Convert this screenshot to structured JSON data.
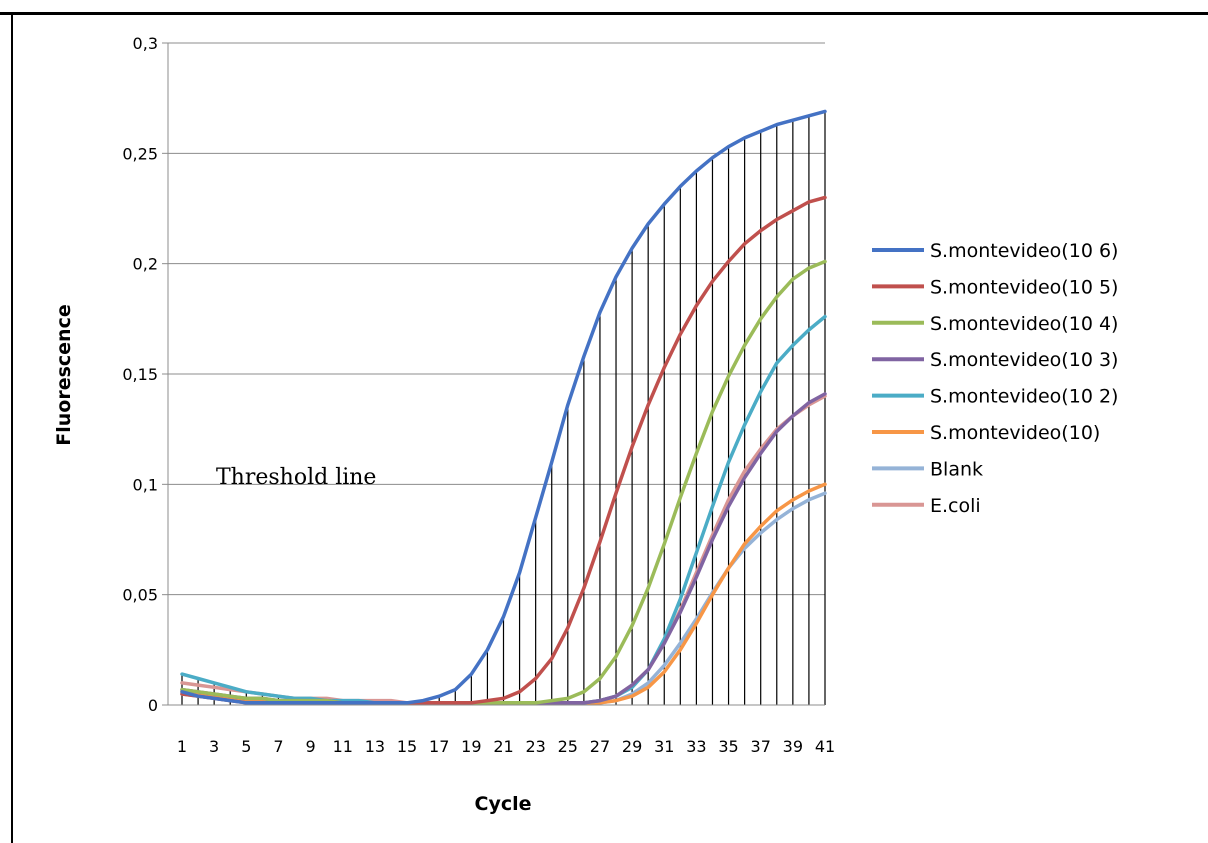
{
  "chart_data": {
    "type": "line",
    "title": "",
    "xlabel": "Cycle",
    "ylabel": "Fluorescence",
    "annotation": "Threshold line",
    "xlim": [
      1,
      41
    ],
    "ylim": [
      0,
      0.3
    ],
    "yticks": [
      "0",
      "0,05",
      "0,1",
      "0,15",
      "0,2",
      "0,25",
      "0,3"
    ],
    "ytick_values": [
      0,
      0.05,
      0.1,
      0.15,
      0.2,
      0.25,
      0.3
    ],
    "xticks": [
      "1",
      "3",
      "5",
      "7",
      "9",
      "11",
      "13",
      "15",
      "17",
      "19",
      "21",
      "23",
      "25",
      "27",
      "29",
      "31",
      "33",
      "35",
      "37",
      "39",
      "41"
    ],
    "grid": true,
    "drop_lines": true,
    "legend_position": "right",
    "x": [
      1,
      2,
      3,
      4,
      5,
      6,
      7,
      8,
      9,
      10,
      11,
      12,
      13,
      14,
      15,
      16,
      17,
      18,
      19,
      20,
      21,
      22,
      23,
      24,
      25,
      26,
      27,
      28,
      29,
      30,
      31,
      32,
      33,
      34,
      35,
      36,
      37,
      38,
      39,
      40,
      41
    ],
    "series": [
      {
        "name": "S.montevideo(10 6)",
        "color": "#4472C4",
        "values": [
          0.006,
          0.004,
          0.003,
          0.002,
          0.001,
          0.001,
          0.001,
          0.001,
          0.001,
          0.001,
          0.001,
          0.001,
          0.001,
          0.001,
          0.001,
          0.002,
          0.004,
          0.007,
          0.014,
          0.025,
          0.04,
          0.06,
          0.085,
          0.11,
          0.136,
          0.158,
          0.178,
          0.194,
          0.207,
          0.218,
          0.227,
          0.235,
          0.242,
          0.248,
          0.253,
          0.257,
          0.26,
          0.263,
          0.265,
          0.267,
          0.269
        ]
      },
      {
        "name": "S.montevideo(10 5)",
        "color": "#C0504D",
        "values": [
          0.005,
          0.004,
          0.003,
          0.002,
          0.001,
          0.001,
          0.001,
          0.001,
          0.001,
          0.001,
          0.001,
          0.001,
          0.001,
          0.001,
          0.001,
          0.001,
          0.001,
          0.001,
          0.001,
          0.002,
          0.003,
          0.006,
          0.012,
          0.021,
          0.035,
          0.053,
          0.074,
          0.096,
          0.117,
          0.136,
          0.153,
          0.168,
          0.181,
          0.192,
          0.201,
          0.209,
          0.215,
          0.22,
          0.224,
          0.228,
          0.23
        ]
      },
      {
        "name": "S.montevideo(10 4)",
        "color": "#9BBB59",
        "values": [
          0.007,
          0.006,
          0.005,
          0.004,
          0.003,
          0.003,
          0.002,
          0.002,
          0.002,
          0.002,
          0.001,
          0.001,
          0.001,
          0.001,
          0.001,
          0.001,
          0.001,
          0.001,
          0.001,
          0.001,
          0.001,
          0.001,
          0.001,
          0.002,
          0.003,
          0.006,
          0.012,
          0.022,
          0.036,
          0.053,
          0.073,
          0.094,
          0.114,
          0.133,
          0.149,
          0.163,
          0.175,
          0.185,
          0.193,
          0.198,
          0.201
        ]
      },
      {
        "name": "S.montevideo(10 3)",
        "color": "#8064A2",
        "values": [
          0.007,
          0.006,
          0.005,
          0.004,
          0.003,
          0.003,
          0.002,
          0.002,
          0.002,
          0.002,
          0.001,
          0.001,
          0.001,
          0.001,
          0.001,
          0.001,
          0.001,
          0.001,
          0.001,
          0.001,
          0.001,
          0.001,
          0.001,
          0.001,
          0.001,
          0.001,
          0.002,
          0.004,
          0.009,
          0.016,
          0.028,
          0.042,
          0.058,
          0.075,
          0.09,
          0.103,
          0.114,
          0.124,
          0.131,
          0.137,
          0.141
        ]
      },
      {
        "name": "S.montevideo(10 2)",
        "color": "#4BACC6",
        "values": [
          0.014,
          0.012,
          0.01,
          0.008,
          0.006,
          0.005,
          0.004,
          0.003,
          0.003,
          0.002,
          0.002,
          0.002,
          0.001,
          0.001,
          0.001,
          0.001,
          0.001,
          0.001,
          0.001,
          0.001,
          0.001,
          0.001,
          0.001,
          0.001,
          0.001,
          0.001,
          0.002,
          0.004,
          0.008,
          0.016,
          0.03,
          0.048,
          0.069,
          0.09,
          0.11,
          0.127,
          0.142,
          0.155,
          0.163,
          0.17,
          0.176
        ]
      },
      {
        "name": "S.montevideo(10)",
        "color": "#F79646",
        "values": [
          0.006,
          0.005,
          0.004,
          0.003,
          0.002,
          0.002,
          0.002,
          0.001,
          0.001,
          0.001,
          0.001,
          0.001,
          0.001,
          0.001,
          0.001,
          0.001,
          0.001,
          0.001,
          0.001,
          0.001,
          0.001,
          0.001,
          0.001,
          0.001,
          0.001,
          0.001,
          0.001,
          0.002,
          0.004,
          0.008,
          0.015,
          0.025,
          0.037,
          0.05,
          0.062,
          0.073,
          0.081,
          0.088,
          0.093,
          0.097,
          0.1
        ]
      },
      {
        "name": "Blank",
        "color": "#95B3D7",
        "values": [
          0.005,
          0.004,
          0.003,
          0.002,
          0.002,
          0.002,
          0.001,
          0.001,
          0.001,
          0.001,
          0.001,
          0.001,
          0.001,
          0.001,
          0.001,
          0.001,
          0.001,
          0.001,
          0.001,
          0.001,
          0.001,
          0.001,
          0.001,
          0.001,
          0.001,
          0.001,
          0.001,
          0.002,
          0.005,
          0.01,
          0.018,
          0.028,
          0.039,
          0.051,
          0.062,
          0.071,
          0.078,
          0.084,
          0.089,
          0.093,
          0.096
        ]
      },
      {
        "name": "E.coli",
        "color": "#D99694",
        "values": [
          0.01,
          0.009,
          0.008,
          0.007,
          0.006,
          0.005,
          0.004,
          0.003,
          0.003,
          0.003,
          0.002,
          0.002,
          0.002,
          0.002,
          0.001,
          0.001,
          0.001,
          0.001,
          0.001,
          0.001,
          0.001,
          0.001,
          0.001,
          0.001,
          0.001,
          0.001,
          0.002,
          0.004,
          0.009,
          0.016,
          0.028,
          0.043,
          0.06,
          0.077,
          0.093,
          0.106,
          0.116,
          0.125,
          0.131,
          0.136,
          0.14
        ]
      }
    ]
  }
}
